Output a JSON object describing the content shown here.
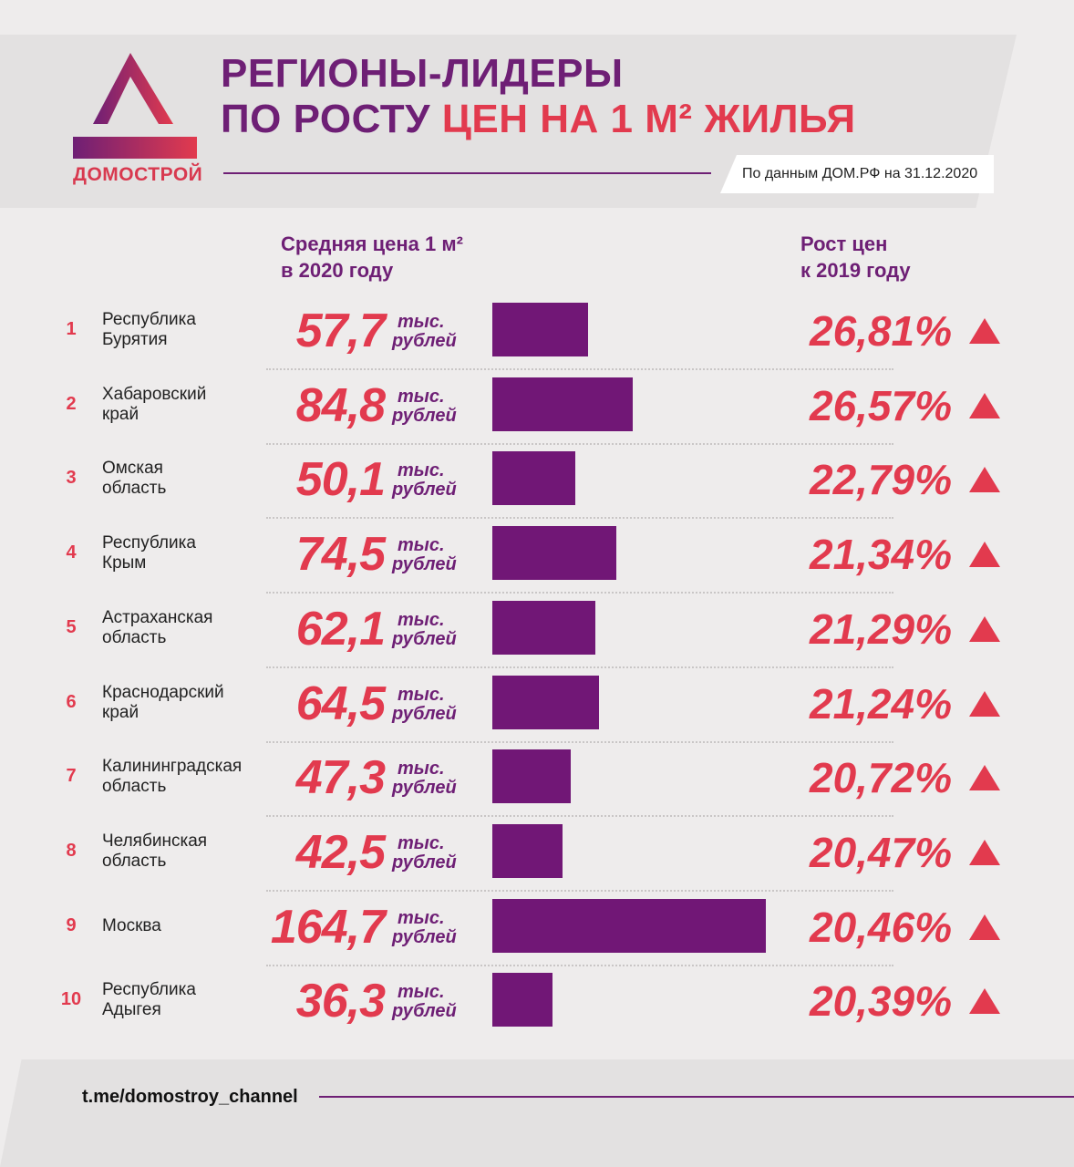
{
  "brand": {
    "name": "ДОМОСТРОЙ"
  },
  "title": {
    "line1": "РЕГИОНЫ-ЛИДЕРЫ",
    "line2_dark": "ПО РОСТУ",
    "line2_accent": "ЦЕН НА 1 М² ЖИЛЬЯ"
  },
  "source": "По данным ДОМ.РФ на 31.12.2020",
  "columns": {
    "price": {
      "line1": "Средняя цена 1 м²",
      "line2": "в 2020 году"
    },
    "growth": {
      "line1": "Рост цен",
      "line2": "к 2019 году"
    }
  },
  "unit": {
    "line1": "тыс.",
    "line2": "рублей"
  },
  "colors": {
    "accent": "#e23a4e",
    "bar": "#711776",
    "brand_dark": "#6e1f75"
  },
  "chart_data": {
    "type": "bar",
    "categories": [
      "Республика Бурятия",
      "Хабаровский край",
      "Омская область",
      "Республика Крым",
      "Астраханская область",
      "Краснодарский край",
      "Калининградская область",
      "Челябинская область",
      "Москва",
      "Республика Адыгея"
    ],
    "rows": [
      {
        "rank": "1",
        "region_l1": "Республика",
        "region_l2": "Бурятия",
        "price": 57.7,
        "price_label": "57,7",
        "growth": 26.81,
        "growth_label": "26,81%"
      },
      {
        "rank": "2",
        "region_l1": "Хабаровский",
        "region_l2": "край",
        "price": 84.8,
        "price_label": "84,8",
        "growth": 26.57,
        "growth_label": "26,57%"
      },
      {
        "rank": "3",
        "region_l1": "Омская",
        "region_l2": "область",
        "price": 50.1,
        "price_label": "50,1",
        "growth": 22.79,
        "growth_label": "22,79%"
      },
      {
        "rank": "4",
        "region_l1": "Республика",
        "region_l2": "Крым",
        "price": 74.5,
        "price_label": "74,5",
        "growth": 21.34,
        "growth_label": "21,34%"
      },
      {
        "rank": "5",
        "region_l1": "Астраханская",
        "region_l2": "область",
        "price": 62.1,
        "price_label": "62,1",
        "growth": 21.29,
        "growth_label": "21,29%"
      },
      {
        "rank": "6",
        "region_l1": "Краснодарский",
        "region_l2": "край",
        "price": 64.5,
        "price_label": "64,5",
        "growth": 21.24,
        "growth_label": "21,24%"
      },
      {
        "rank": "7",
        "region_l1": "Калининградская",
        "region_l2": "область",
        "price": 47.3,
        "price_label": "47,3",
        "growth": 20.72,
        "growth_label": "20,72%"
      },
      {
        "rank": "8",
        "region_l1": "Челябинская",
        "region_l2": "область",
        "price": 42.5,
        "price_label": "42,5",
        "growth": 20.47,
        "growth_label": "20,47%"
      },
      {
        "rank": "9",
        "region_l1": "Москва",
        "region_l2": "",
        "price": 164.7,
        "price_label": "164,7",
        "growth": 20.46,
        "growth_label": "20,46%"
      },
      {
        "rank": "10",
        "region_l1": "Республика",
        "region_l2": "Адыгея",
        "price": 36.3,
        "price_label": "36,3",
        "growth": 20.39,
        "growth_label": "20,39%"
      }
    ]
  },
  "footer": {
    "link": "t.me/domostroy_channel"
  }
}
